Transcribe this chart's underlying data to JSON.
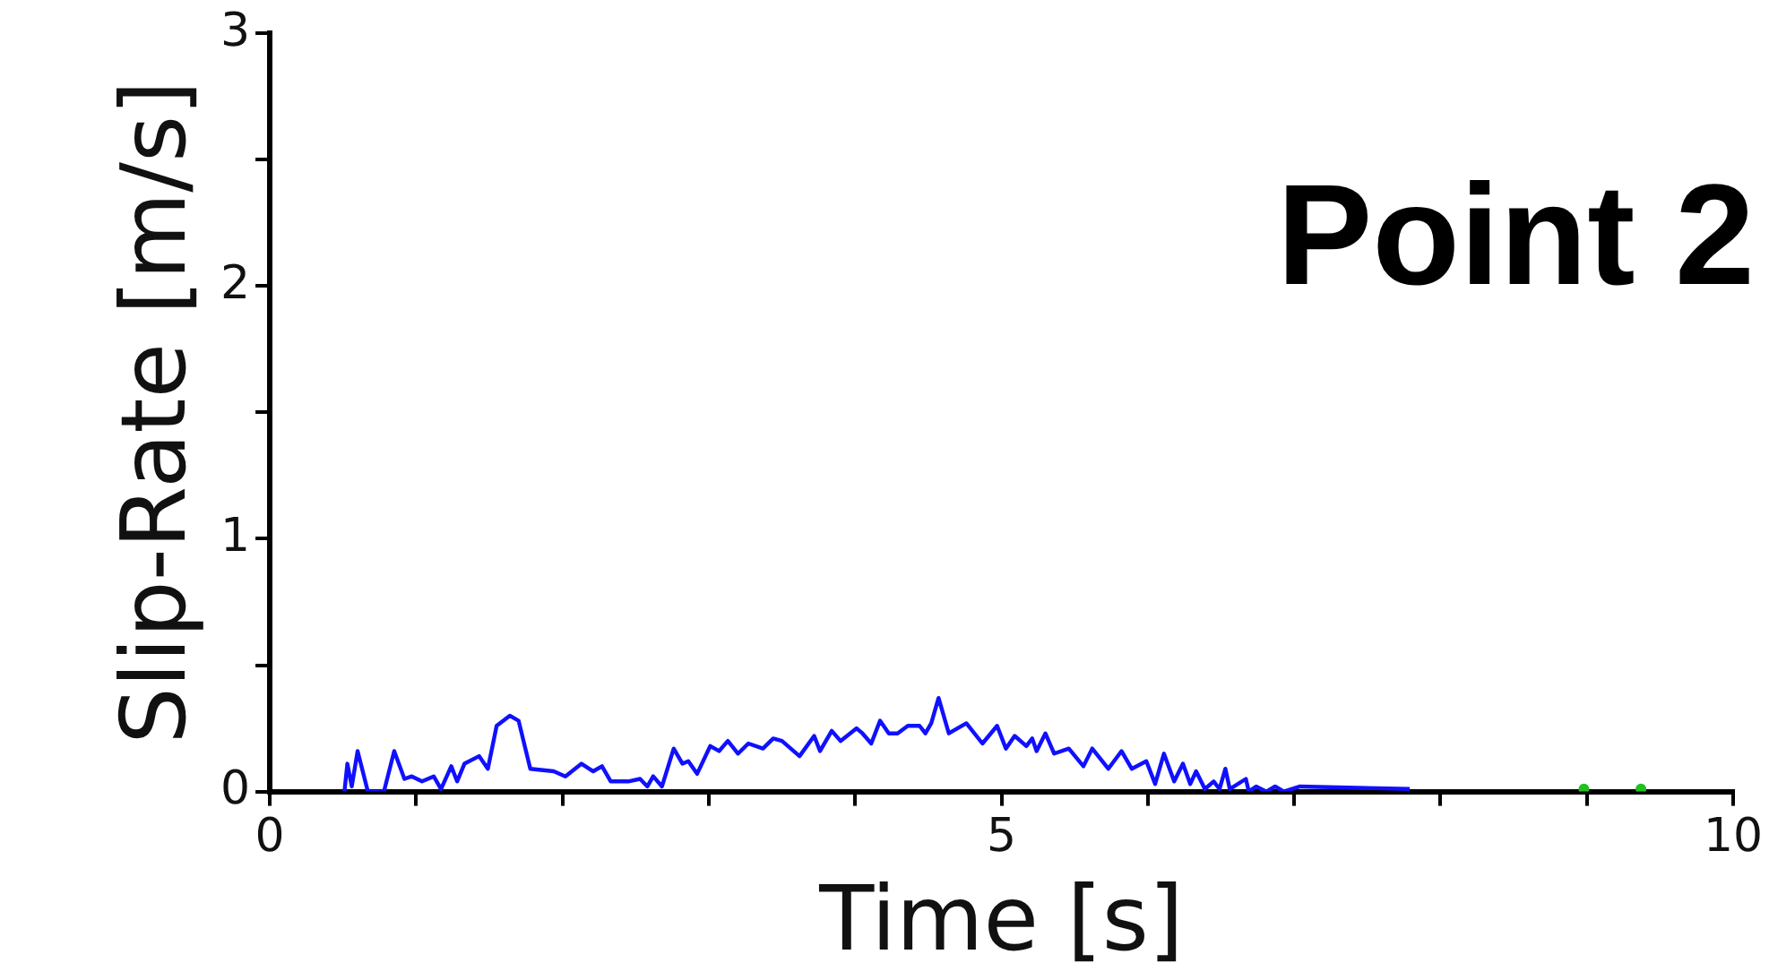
{
  "chart_data": {
    "type": "line",
    "xlabel": "Time [s]",
    "ylabel": "Slip-Rate [m/s]",
    "annotations": [
      "Point 2"
    ],
    "xlim": [
      0,
      10
    ],
    "xticks": [
      0,
      {
        "value": 1,
        "label": null
      },
      {
        "value": 2,
        "label": null
      },
      {
        "value": 3,
        "label": null
      },
      {
        "value": 4,
        "label": null
      },
      5,
      {
        "value": 6,
        "label": null
      },
      {
        "value": 7,
        "label": null
      },
      {
        "value": 8,
        "label": null
      },
      {
        "value": 9,
        "label": null
      },
      10
    ],
    "ylim": [
      0,
      3
    ],
    "yticks": [
      0,
      {
        "value": 0.5,
        "label": null
      },
      1,
      {
        "value": 1.5,
        "label": null
      },
      2,
      {
        "value": 2.5,
        "label": null
      },
      3
    ],
    "grid": false,
    "legend": false,
    "line_style": "solid",
    "series": [
      {
        "color": "#1010ff",
        "marker": "none",
        "x": [
          0.51,
          0.53,
          0.56,
          0.6,
          0.67,
          0.78,
          0.85,
          0.92,
          0.97,
          1.04,
          1.12,
          1.17,
          1.24,
          1.28,
          1.33,
          1.43,
          1.49,
          1.55,
          1.64,
          1.7,
          1.78,
          1.94,
          2.02,
          2.13,
          2.21,
          2.27,
          2.33,
          2.45,
          2.53,
          2.58,
          2.62,
          2.68,
          2.76,
          2.82,
          2.86,
          2.92,
          3.01,
          3.07,
          3.13,
          3.2,
          3.27,
          3.37,
          3.44,
          3.5,
          3.62,
          3.72,
          3.76,
          3.84,
          3.9,
          4.01,
          4.05,
          4.11,
          4.17,
          4.23,
          4.29,
          4.36,
          4.44,
          4.48,
          4.52,
          4.57,
          4.64,
          4.76,
          4.87,
          4.97,
          5.03,
          5.09,
          5.17,
          5.21,
          5.24,
          5.3,
          5.36,
          5.46,
          5.56,
          5.62,
          5.73,
          5.82,
          5.89,
          5.99,
          6.05,
          6.11,
          6.18,
          6.24,
          6.29,
          6.33,
          6.39,
          6.45,
          6.49,
          6.53,
          6.56,
          6.67,
          6.69,
          6.74,
          6.81,
          6.87,
          6.93,
          7.04,
          7.79
        ],
        "values": [
          0,
          0.11,
          0.02,
          0.16,
          0,
          0,
          0.16,
          0.05,
          0.06,
          0.04,
          0.06,
          0.01,
          0.1,
          0.04,
          0.11,
          0.14,
          0.09,
          0.26,
          0.3,
          0.28,
          0.09,
          0.08,
          0.06,
          0.11,
          0.08,
          0.1,
          0.04,
          0.04,
          0.05,
          0.02,
          0.06,
          0.02,
          0.17,
          0.11,
          0.12,
          0.07,
          0.18,
          0.16,
          0.2,
          0.15,
          0.19,
          0.17,
          0.21,
          0.2,
          0.14,
          0.22,
          0.16,
          0.24,
          0.2,
          0.25,
          0.23,
          0.19,
          0.28,
          0.23,
          0.23,
          0.26,
          0.26,
          0.23,
          0.27,
          0.37,
          0.23,
          0.27,
          0.19,
          0.26,
          0.17,
          0.22,
          0.18,
          0.21,
          0.16,
          0.23,
          0.15,
          0.17,
          0.1,
          0.17,
          0.09,
          0.16,
          0.09,
          0.12,
          0.03,
          0.15,
          0.04,
          0.11,
          0.03,
          0.08,
          0.01,
          0.04,
          0.01,
          0.09,
          0.01,
          0.05,
          0,
          0.02,
          0,
          0.02,
          0,
          0.02,
          0.01
        ]
      },
      {
        "type": "scatter",
        "marker": "circle",
        "color": "#20c020",
        "x": [
          8.98,
          9.37
        ],
        "values": [
          0.01,
          0.01
        ]
      }
    ]
  }
}
